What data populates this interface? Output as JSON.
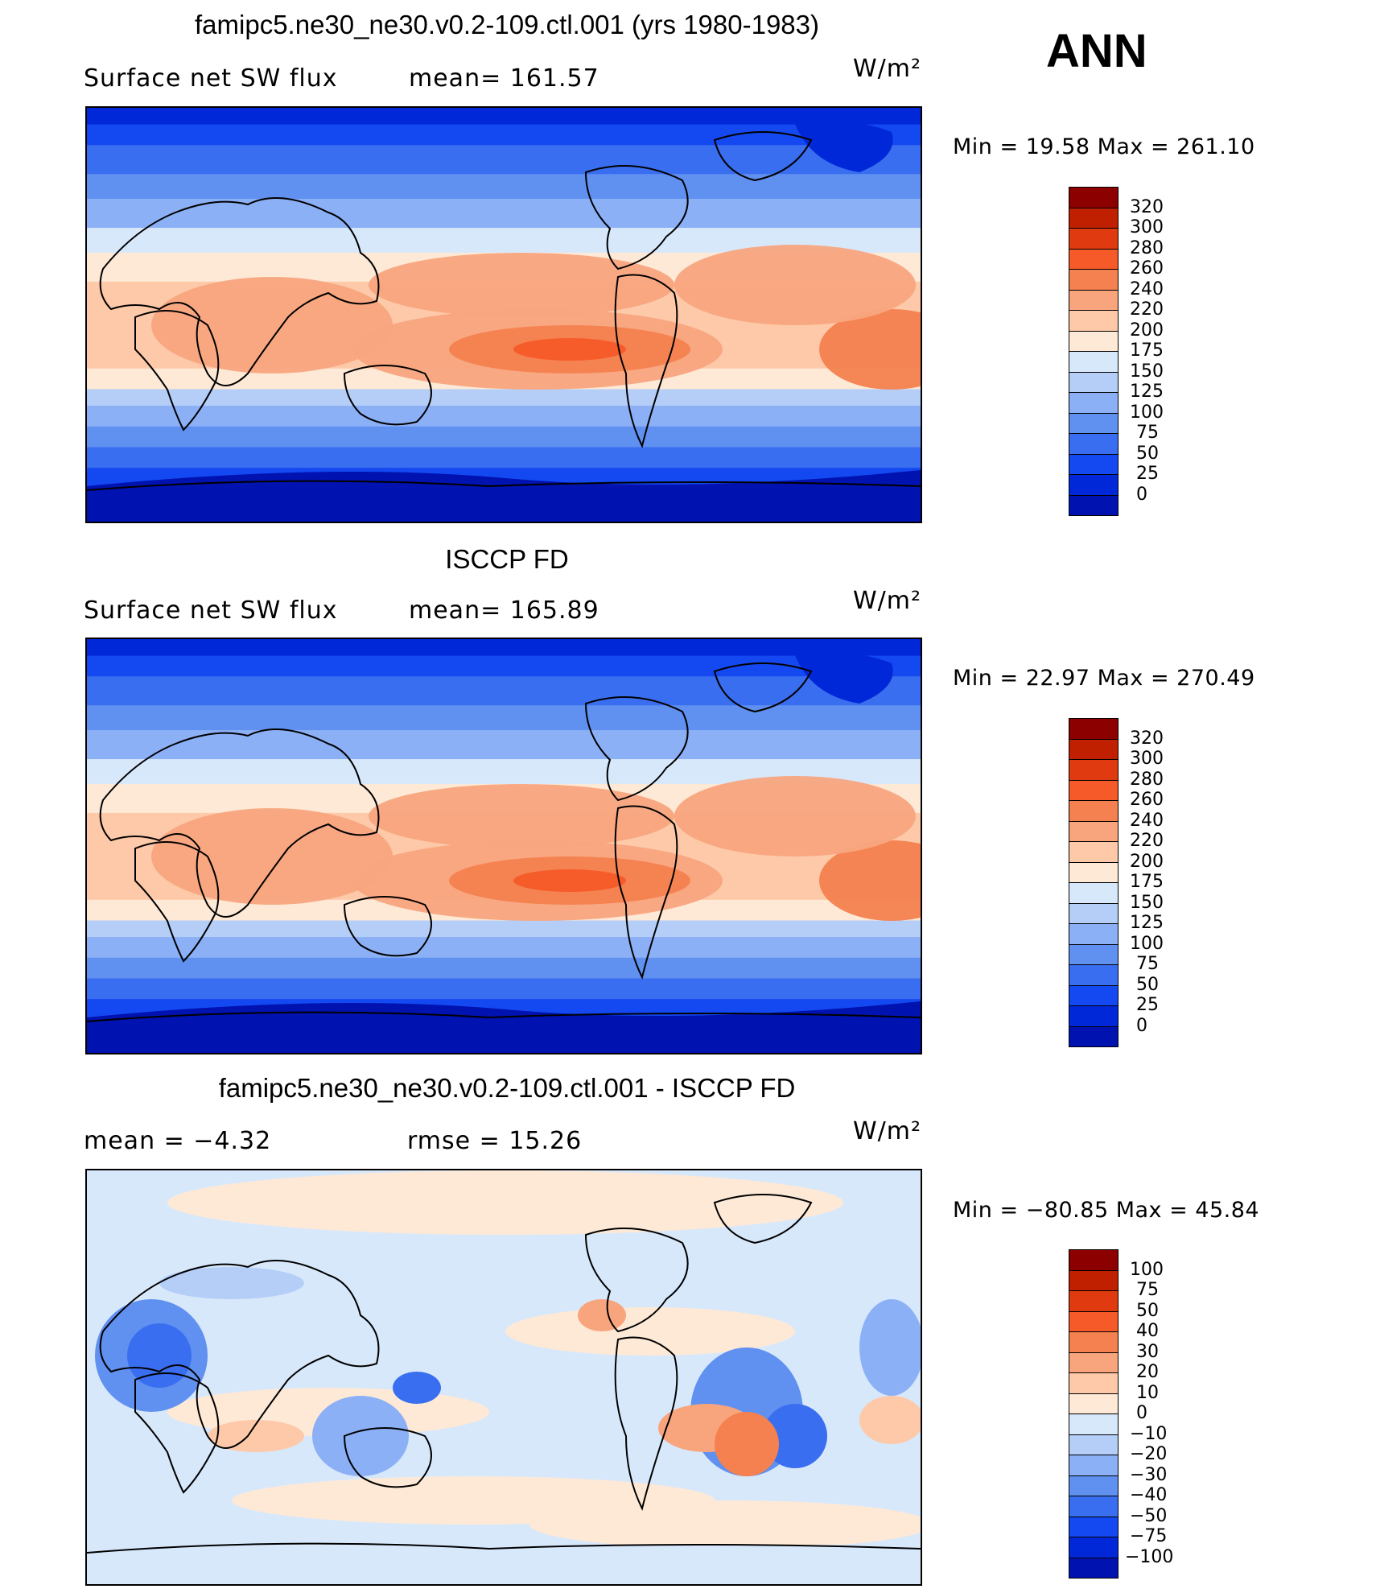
{
  "season": "ANN",
  "units": "W/m²",
  "colors": {
    "abs_scale": [
      "#000080",
      "#0012b0",
      "#0028d8",
      "#1448f0",
      "#3a6ef0",
      "#6090f0",
      "#8cb0f6",
      "#b4cef8",
      "#d8e8fb",
      "#fde9d6",
      "#fdc9a8",
      "#f8a57e",
      "#f4814f",
      "#f55a28",
      "#e03a10",
      "#c02000",
      "#8c0000"
    ],
    "diff_scale": [
      "#000080",
      "#0012b0",
      "#0028d8",
      "#1448f0",
      "#3a6ef0",
      "#6090f0",
      "#8cb0f6",
      "#b4cef8",
      "#d8e8fb",
      "#fde9d6",
      "#fdc9a8",
      "#f8a57e",
      "#f4814f",
      "#f55a28",
      "#e03a10",
      "#c02000",
      "#8c0000"
    ]
  },
  "panels": [
    {
      "title": "famipc5.ne30_ne30.v0.2-109.ctl.001 (yrs 1980-1983)",
      "left_label": "Surface  net  SW  flux",
      "mean_label": "mean=  161.57",
      "units": "W/m²",
      "minmax": "Min  =    19.58  Max  =  261.10",
      "levels": [
        "320",
        "300",
        "280",
        "260",
        "240",
        "220",
        "200",
        "175",
        "150",
        "125",
        "100",
        "75",
        "50",
        "25",
        "0"
      ]
    },
    {
      "title": "ISCCP FD",
      "left_label": "Surface  net  SW  flux",
      "mean_label": "mean=  165.89",
      "units": "W/m²",
      "minmax": "Min  =    22.97  Max  =  270.49",
      "levels": [
        "320",
        "300",
        "280",
        "260",
        "240",
        "220",
        "200",
        "175",
        "150",
        "125",
        "100",
        "75",
        "50",
        "25",
        "0"
      ]
    },
    {
      "title": "famipc5.ne30_ne30.v0.2-109.ctl.001 - ISCCP FD",
      "left_label": "mean  =     −4.32",
      "mean_label": "rmse  =     15.26",
      "units": "W/m²",
      "minmax": "Min  =  −80.85  Max  =     45.84",
      "levels": [
        "100",
        "75",
        "50",
        "40",
        "30",
        "20",
        "10",
        "0",
        "−10",
        "−20",
        "−30",
        "−40",
        "−50",
        "−75",
        "−100"
      ]
    }
  ],
  "chart_data": [
    {
      "type": "heatmap",
      "title": "famipc5.ne30_ne30.v0.2-109.ctl.001 (yrs 1980-1983)",
      "variable": "Surface net SW flux",
      "units": "W/m²",
      "mean": 161.57,
      "min": 19.58,
      "max": 261.1,
      "contour_levels": [
        0,
        25,
        50,
        75,
        100,
        125,
        150,
        175,
        200,
        220,
        240,
        260,
        280,
        300,
        320
      ],
      "x": "longitude",
      "y": "latitude"
    },
    {
      "type": "heatmap",
      "title": "ISCCP FD",
      "variable": "Surface net SW flux",
      "units": "W/m²",
      "mean": 165.89,
      "min": 22.97,
      "max": 270.49,
      "contour_levels": [
        0,
        25,
        50,
        75,
        100,
        125,
        150,
        175,
        200,
        220,
        240,
        260,
        280,
        300,
        320
      ],
      "x": "longitude",
      "y": "latitude"
    },
    {
      "type": "heatmap",
      "title": "famipc5.ne30_ne30.v0.2-109.ctl.001 - ISCCP FD",
      "units": "W/m²",
      "mean": -4.32,
      "rmse": 15.26,
      "min": -80.85,
      "max": 45.84,
      "contour_levels": [
        -100,
        -75,
        -50,
        -40,
        -30,
        -20,
        -10,
        0,
        10,
        20,
        30,
        40,
        50,
        75,
        100
      ],
      "x": "longitude",
      "y": "latitude"
    }
  ]
}
